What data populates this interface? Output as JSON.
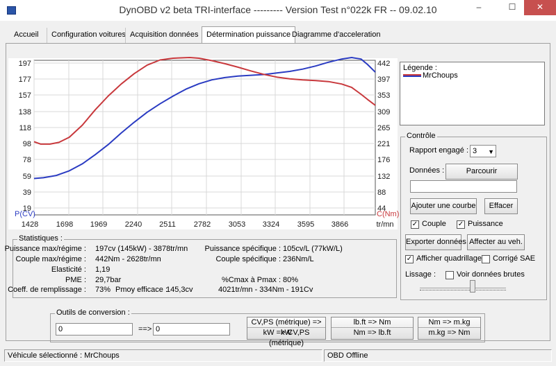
{
  "window": {
    "title": "DynOBD v2 beta TRI-interface --------- Version Test n°022k FR -- 09.02.10",
    "minimize": "‒",
    "maximize": "☐",
    "close": "✕"
  },
  "tabs": [
    {
      "label": "Accueil"
    },
    {
      "label": "Configuration voitures"
    },
    {
      "label": "Acquisition données"
    },
    {
      "label": "Détermination puissance"
    },
    {
      "label": "Diagramme d'acceleration"
    }
  ],
  "chart_data": {
    "type": "line",
    "x_ticks": [
      "1428",
      "1698",
      "1969",
      "2240",
      "2511",
      "2782",
      "3053",
      "3324",
      "3595",
      "3866"
    ],
    "x_unit": "tr/mn",
    "left_ticks": [
      "197",
      "177",
      "157",
      "138",
      "118",
      "98",
      "78",
      "59",
      "39",
      "19"
    ],
    "left_label": "P(CV)",
    "right_ticks": [
      "442",
      "397",
      "353",
      "309",
      "265",
      "221",
      "176",
      "132",
      "88",
      "44"
    ],
    "right_label": "C(Nm)",
    "x_range": [
      1428,
      4060
    ],
    "left_range": [
      0,
      197
    ],
    "right_range": [
      0,
      442
    ],
    "series": [
      {
        "name": "Puissance",
        "axis": "left",
        "color": "#2a3bc2",
        "x": [
          1428,
          1500,
          1600,
          1700,
          1800,
          1900,
          2000,
          2100,
          2200,
          2300,
          2400,
          2500,
          2600,
          2700,
          2800,
          2900,
          3000,
          3100,
          3200,
          3300,
          3400,
          3500,
          3600,
          3700,
          3800,
          3878,
          3950,
          4000,
          4060
        ],
        "y": [
          40,
          41,
          44,
          50,
          59,
          71,
          84,
          99,
          113,
          126,
          137,
          147,
          156,
          163,
          168,
          171,
          173,
          174,
          175,
          177,
          179,
          182,
          186,
          191,
          195,
          197,
          195,
          188,
          178
        ]
      },
      {
        "name": "Couple",
        "axis": "right",
        "color": "#c8383c",
        "x": [
          1428,
          1480,
          1550,
          1620,
          1700,
          1800,
          1900,
          2000,
          2100,
          2200,
          2300,
          2400,
          2500,
          2628,
          2700,
          2800,
          2900,
          3000,
          3100,
          3200,
          3300,
          3400,
          3500,
          3600,
          3700,
          3800,
          3878,
          3950,
          4000,
          4060
        ],
        "y": [
          197,
          190,
          190,
          195,
          210,
          245,
          290,
          330,
          365,
          395,
          420,
          435,
          440,
          442,
          440,
          433,
          424,
          414,
          403,
          393,
          385,
          380,
          377,
          375,
          372,
          365,
          355,
          335,
          320,
          303
        ]
      }
    ]
  },
  "legend": {
    "title": "Légende :",
    "items": [
      {
        "label": "MrChoups",
        "color_top": "#c8383c",
        "color_bottom": "#2a3bc2"
      }
    ]
  },
  "controle": {
    "title": "Contrôle",
    "rapport_label": "Rapport engagé :",
    "rapport_value": "3",
    "donnees_label": "Données :",
    "parcourir": "Parcourir",
    "file_value": "",
    "afficher_courbe": "Ajouter une courbe",
    "effacer": "Effacer",
    "couple_label": "Couple",
    "couple_checked": true,
    "puissance_label": "Puissance",
    "puissance_checked": true,
    "exporter": "Exporter données",
    "affecter": "Affecter au veh.",
    "quadrillage_label": "Afficher quadrillage",
    "quadrillage_checked": true,
    "sae_label": "Corrigé SAE",
    "sae_checked": false,
    "lissage_label": "Lissage :",
    "brutes_label": "Voir données brutes",
    "brutes_checked": false
  },
  "stats": {
    "title": "Statistiques :",
    "pmax_label": "Puissance max/régime :",
    "pmax_value": "197cv (145kW) - 3878tr/mn",
    "cmax_label": "Couple max/régime :",
    "cmax_value": "442Nm - 2628tr/mn",
    "elast_label": "Elasticité :",
    "elast_value": "1,19",
    "pme_label": "PME :",
    "pme_value": "29,7bar",
    "remp_label": "Coeff. de remplissage :",
    "remp_value": "73%",
    "pmoy_label": "Pmoy efficace :",
    "pmoy_value": "145,3cv",
    "pspec_label": "Puissance spécifique :",
    "pspec_value": "105cv/L (77kW/L)",
    "cspec_label": "Couple spécifique :",
    "cspec_value": "236Nm/L",
    "ratio_label": "%Cmax à Pmax :",
    "ratio_value": "80%",
    "range_value": "4021tr/mn - 334Nm - 191Cv"
  },
  "outils": {
    "title": "Outils de conversion :",
    "input1": "0",
    "arrow": "==>",
    "input2": "0",
    "b1_top": "CV,PS (métrique) => kW",
    "b1_bottom": "kW => CV,PS (métrique)",
    "b2_top": "lb.ft => Nm",
    "b2_bottom": "Nm => lb.ft",
    "b3_top": "Nm => m.kg",
    "b3_bottom": "m.kg => Nm"
  },
  "status": {
    "vehicule": "Véhicule sélectionné : MrChoups",
    "obd": "OBD Offline"
  }
}
